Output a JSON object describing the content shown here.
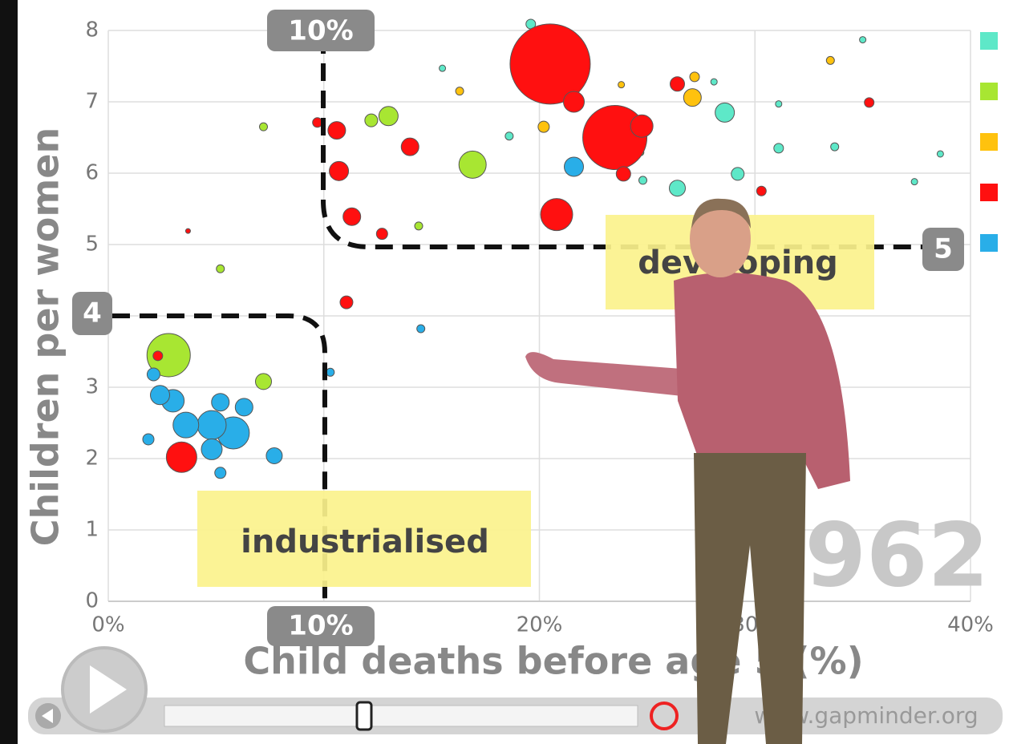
{
  "chart_data": {
    "type": "scatter",
    "xlabel": "Child deaths before age 5 (%)",
    "ylabel": "Children per women",
    "xlim": [
      0,
      40
    ],
    "ylim": [
      0,
      8
    ],
    "xticks": [
      {
        "value": 0,
        "label": "0%"
      },
      {
        "value": 10,
        "label": "10%"
      },
      {
        "value": 20,
        "label": "20%"
      },
      {
        "value": 30,
        "label": "30%"
      },
      {
        "value": 40,
        "label": "40%"
      }
    ],
    "yticks": [
      0,
      1,
      2,
      3,
      4,
      5,
      6,
      7,
      8
    ],
    "grid": true,
    "annotations": [
      "10%",
      "10%",
      "4",
      "5",
      "industrialised",
      "developing",
      "1962"
    ],
    "footer": "www.gapminder.org",
    "series": [
      {
        "color": "#5ee8c8",
        "x": [
          28.6,
          26.4,
          29.2,
          19.6,
          31.1,
          35.0,
          38.6,
          33.7,
          28.1,
          18.6,
          15.5,
          37.4,
          24.8,
          31.1
        ],
        "values": [
          6.85,
          5.79,
          5.99,
          8.09,
          6.35,
          7.87,
          6.27,
          6.37,
          7.28,
          6.52,
          7.47,
          5.88,
          5.9,
          6.97
        ],
        "sizes": [
          12,
          10,
          8,
          6,
          6,
          4,
          4,
          5,
          4,
          5,
          4,
          4,
          5,
          4
        ]
      },
      {
        "color": "#a8e632",
        "x": [
          2.8,
          16.9,
          13.0,
          12.2,
          7.2,
          7.2,
          5.2,
          14.4,
          24.7
        ],
        "values": [
          3.45,
          6.12,
          6.8,
          6.74,
          3.08,
          6.65,
          4.66,
          5.26,
          6.29
        ],
        "sizes": [
          27,
          17,
          12,
          8,
          10,
          5,
          5,
          5,
          4
        ]
      },
      {
        "color": "#ffc20e",
        "x": [
          27.1,
          27.2,
          20.2,
          16.3,
          33.5,
          23.8
        ],
        "values": [
          7.06,
          7.35,
          6.65,
          7.15,
          7.58,
          7.24
        ],
        "sizes": [
          11,
          6,
          7,
          5,
          5,
          4
        ]
      },
      {
        "color": "#ff1010",
        "x": [
          20.5,
          23.5,
          3.4,
          20.8,
          10.7,
          10.6,
          11.3,
          14.0,
          21.6,
          11.05,
          26.4,
          12.7,
          2.3,
          23.9,
          24.75,
          30.3,
          35.3,
          9.7,
          3.7
        ],
        "values": [
          7.53,
          6.5,
          2.02,
          5.42,
          6.03,
          6.6,
          5.39,
          6.37,
          7.0,
          4.19,
          7.25,
          5.15,
          3.44,
          5.99,
          6.66,
          5.75,
          6.99,
          6.71,
          5.19
        ],
        "sizes": [
          50,
          40,
          19,
          20,
          12,
          11,
          11,
          11,
          13,
          8,
          9,
          7,
          6,
          9,
          14,
          6,
          6,
          6,
          3
        ]
      },
      {
        "color": "#29aee8",
        "x": [
          5.8,
          4.8,
          3.6,
          3.0,
          2.4,
          4.8,
          6.3,
          5.2,
          21.6,
          7.7,
          1.86,
          5.2,
          2.1,
          14.5,
          10.3
        ],
        "values": [
          2.36,
          2.47,
          2.47,
          2.81,
          2.89,
          2.13,
          2.72,
          2.79,
          6.09,
          2.04,
          2.27,
          1.8,
          3.18,
          3.82,
          3.21
        ],
        "sizes": [
          20,
          18,
          16,
          14,
          12,
          13,
          11,
          11,
          12,
          10,
          7,
          7,
          8,
          5,
          5
        ]
      }
    ]
  }
}
